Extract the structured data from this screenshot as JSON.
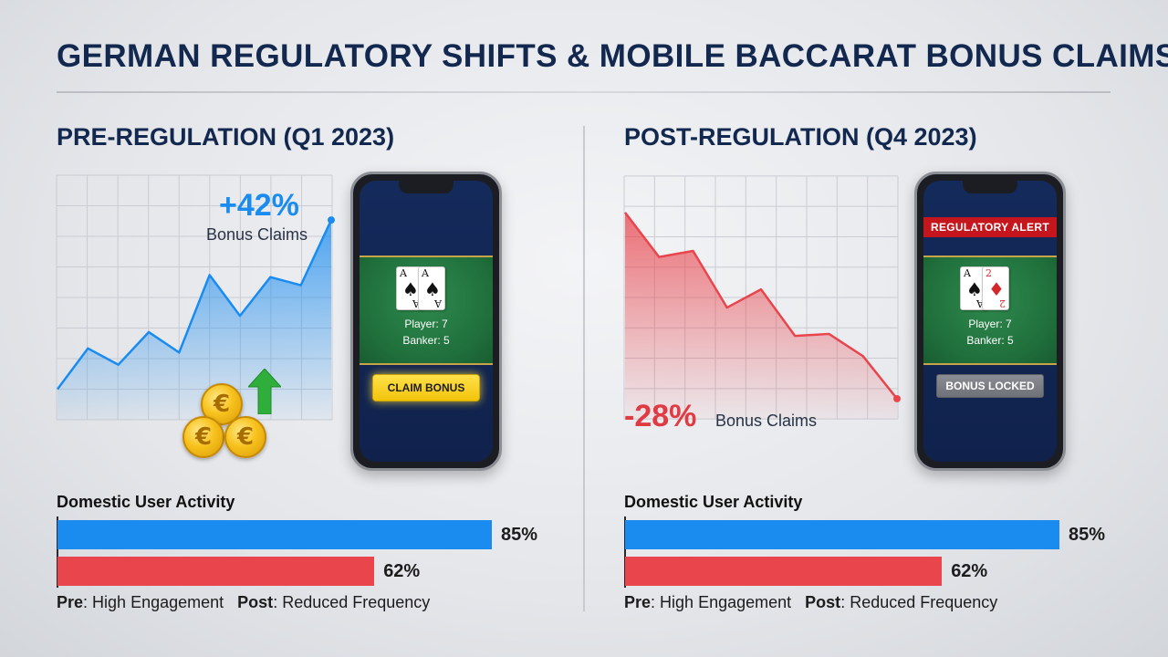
{
  "title": "GERMAN REGULATORY SHIFTS & MOBILE BACCARAT BONUS CLAIMS",
  "colors": {
    "navy": "#13284f",
    "pre_blue": "#1a8cf0",
    "post_red": "#e8454d",
    "alert_red": "#c4161c",
    "claim_yellow": "#f3c30b",
    "felt_green": "#1f6e3b"
  },
  "panels": {
    "pre": {
      "heading": "PRE-REGULATION (Q1 2023)",
      "callout_value": "+42%",
      "callout_label": "Bonus Claims",
      "phone": {
        "score_player": "Player: 7",
        "score_banker": "Banker: 5",
        "button_label": "CLAIM BONUS",
        "cards": [
          {
            "rank": "A",
            "suit": "♠",
            "color": "black"
          },
          {
            "rank": "A",
            "suit": "♠",
            "color": "black"
          }
        ]
      },
      "icons": [
        "euro-coin-icon",
        "up-arrow-icon"
      ]
    },
    "post": {
      "heading": "POST-REGULATION (Q4 2023)",
      "callout_value": "-28%",
      "callout_label": "Bonus Claims",
      "phone": {
        "alert": "REGULATORY ALERT",
        "score_player": "Player: 7",
        "score_banker": "Banker: 5",
        "button_label": "BONUS LOCKED",
        "cards": [
          {
            "rank": "A",
            "suit": "♠",
            "color": "black"
          },
          {
            "rank": "2",
            "suit": "♦",
            "color": "red"
          }
        ]
      }
    }
  },
  "chart_data": [
    {
      "type": "area",
      "title": "",
      "xlabel": "",
      "ylabel": "",
      "x": [
        0,
        1,
        2,
        3,
        4,
        5,
        6,
        7,
        8,
        9
      ],
      "series": [
        {
          "values": [
            15,
            35,
            27,
            43,
            33,
            71,
            51,
            70,
            66,
            98
          ],
          "color": "#1a8cf0"
        }
      ],
      "ylim": [
        0,
        120
      ],
      "grid": true,
      "annotation": "+42% Bonus Claims"
    },
    {
      "type": "area",
      "title": "",
      "xlabel": "",
      "ylabel": "",
      "x": [
        0,
        1,
        2,
        3,
        4,
        5,
        6,
        7,
        8
      ],
      "series": [
        {
          "values": [
            102,
            80,
            83,
            55,
            64,
            41,
            42,
            31,
            10
          ],
          "color": "#e8454d"
        }
      ],
      "ylim": [
        0,
        120
      ],
      "grid": true,
      "annotation": "-28% Bonus Claims"
    },
    {
      "type": "bar",
      "orientation": "horizontal",
      "title": "Domestic User Activity",
      "categories": [
        "Pre",
        "Post"
      ],
      "category_labels": [
        "High Engagement",
        "Reduced Frequency"
      ],
      "values": [
        85,
        62
      ],
      "value_labels": [
        "85%",
        "62%"
      ],
      "xlim": [
        0,
        100
      ]
    },
    {
      "type": "bar",
      "orientation": "horizontal",
      "title": "Domestic User Activity",
      "categories": [
        "Pre",
        "Post"
      ],
      "category_labels": [
        "High Engagement",
        "Reduced Frequency"
      ],
      "values": [
        85,
        62
      ],
      "value_labels": [
        "85%",
        "62%"
      ],
      "xlim": [
        0,
        100
      ]
    }
  ]
}
